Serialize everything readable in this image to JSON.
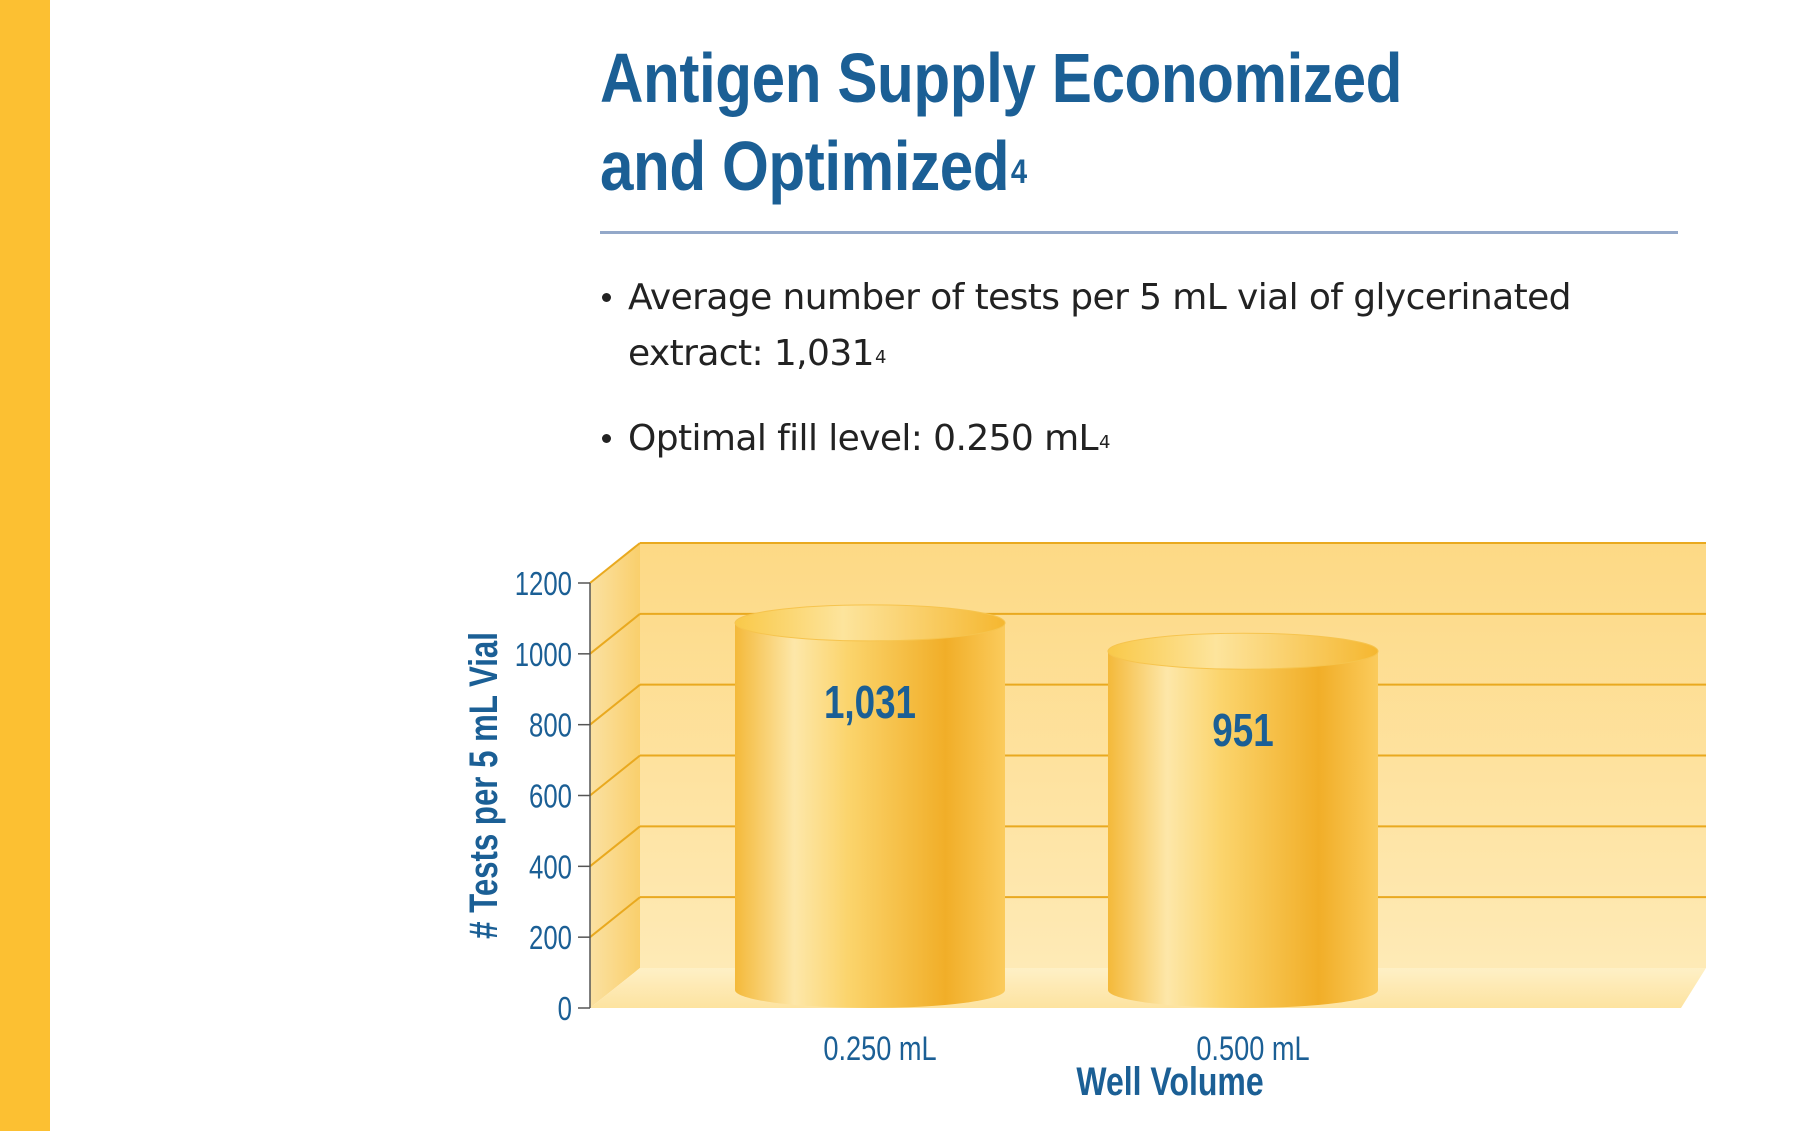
{
  "page": {
    "title_line1": "Antigen Supply Economized",
    "title_line2": "and Optimized",
    "title_sup": "4",
    "bullets": [
      {
        "line1": "Average number of tests per 5 mL vial of glycerinated",
        "line2": "extract: 1,031",
        "sup": "4"
      },
      {
        "line1": "Optimal fill level: 0.250 mL",
        "sup": "4"
      }
    ]
  },
  "colors": {
    "accent_blue": "#1b5f95",
    "side_bar": "#fcc032",
    "chart_back": "#fde29b",
    "bar_gold": "#f3b52f"
  },
  "chart_data": {
    "type": "bar",
    "title": "",
    "categories": [
      "0.250 mL",
      "0.500 mL"
    ],
    "values": [
      1031,
      951
    ],
    "data_labels": [
      "1,031",
      "951"
    ],
    "xlabel": "Well Volume",
    "ylabel": "# Tests per 5 mL Vial",
    "ylim": [
      0,
      1200
    ],
    "yticks": [
      0,
      200,
      400,
      600,
      800,
      1000,
      1200
    ],
    "grid": true,
    "legend": "none"
  }
}
